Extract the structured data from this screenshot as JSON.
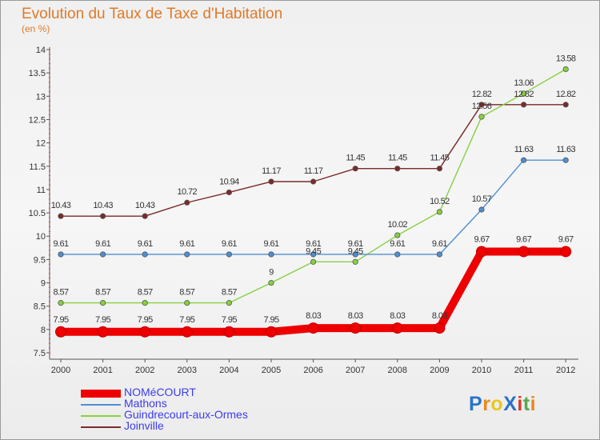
{
  "chart_data": {
    "type": "line",
    "title": "Evolution du Taux de Taxe d'Habitation",
    "subtitle": "(en %)",
    "x": [
      "2000",
      "2001",
      "2002",
      "2003",
      "2004",
      "2005",
      "2006",
      "2007",
      "2008",
      "2009",
      "2010",
      "2011",
      "2012"
    ],
    "ylim": [
      7.5,
      14
    ],
    "yticks": [
      "7.5",
      "8",
      "8.5",
      "9",
      "9.5",
      "10",
      "10.5",
      "11",
      "11.5",
      "12",
      "12.5",
      "13",
      "13.5",
      "14"
    ],
    "grid": false,
    "legend_position": "bottom-left",
    "series": [
      {
        "name": "NOMéCOURT",
        "color": "#ee0000",
        "values": [
          7.95,
          7.95,
          7.95,
          7.95,
          7.95,
          7.95,
          8.03,
          8.03,
          8.03,
          8.03,
          9.67,
          9.67,
          9.67
        ],
        "labels": [
          "7.95",
          "7.95",
          "7.95",
          "7.95",
          "7.95",
          "7.95",
          "8.03",
          "8.03",
          "8.03",
          "8.03",
          "9.67",
          "9.67",
          "9.67"
        ]
      },
      {
        "name": "Mathons",
        "color": "#4f8fd0",
        "values": [
          9.61,
          9.61,
          9.61,
          9.61,
          9.61,
          9.61,
          9.61,
          9.61,
          9.61,
          9.61,
          10.57,
          11.63,
          11.63
        ],
        "labels": [
          "9.61",
          "9.61",
          "9.61",
          "9.61",
          "9.61",
          "9.61",
          "9.61",
          "9.61",
          "9.61",
          "9.61",
          "10.57",
          "11.63",
          "11.63"
        ]
      },
      {
        "name": "Guindrecourt-aux-Ormes",
        "color": "#88d040",
        "values": [
          8.57,
          8.57,
          8.57,
          8.57,
          8.57,
          9,
          9.45,
          9.45,
          10.02,
          10.52,
          12.56,
          13.06,
          13.58
        ],
        "labels": [
          "8.57",
          "8.57",
          "8.57",
          "8.57",
          "8.57",
          "9",
          "9.45",
          "9.45",
          "10.02",
          "10.52",
          "12.56",
          "13.06",
          "13.58"
        ]
      },
      {
        "name": "Joinville",
        "color": "#7a2a2a",
        "values": [
          10.43,
          10.43,
          10.43,
          10.72,
          10.94,
          11.17,
          11.17,
          11.45,
          11.45,
          11.45,
          12.82,
          12.82,
          12.82
        ],
        "labels": [
          "10.43",
          "10.43",
          "10.43",
          "10.72",
          "10.94",
          "11.17",
          "11.17",
          "11.45",
          "11.45",
          "11.45",
          "12.82",
          "12.82",
          "12.82"
        ]
      }
    ]
  },
  "logo": {
    "text": "ProXiti",
    "letters": [
      "P",
      "r",
      "o",
      "X",
      "i",
      "t",
      "i"
    ],
    "colors": [
      "#2a72c8",
      "#e8891e",
      "#e8c81e",
      "#2a72c8",
      "#d63a2a",
      "#59a84c",
      "#e8891e"
    ]
  }
}
